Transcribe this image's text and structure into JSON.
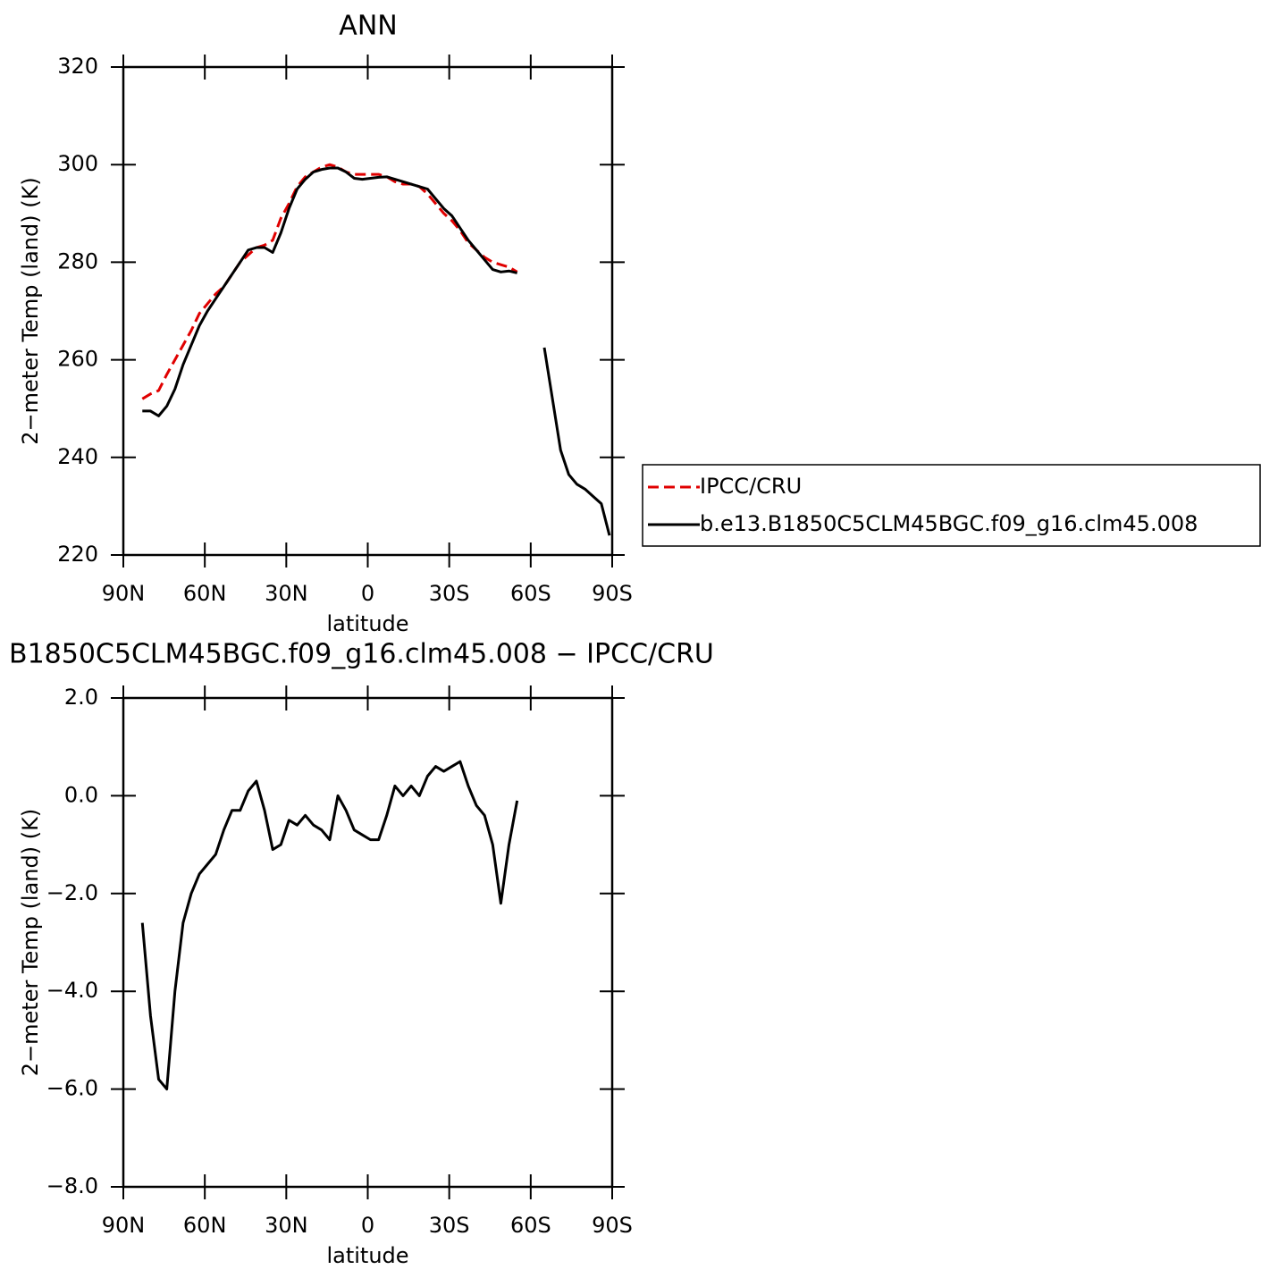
{
  "chart_data": [
    {
      "type": "line",
      "title": "ANN",
      "x_label": "latitude",
      "y_label": "2−meter Temp (land) (K)",
      "x": [
        83,
        80,
        77,
        74,
        71,
        68,
        65,
        62,
        59,
        56,
        53,
        50,
        47,
        44,
        41,
        38,
        35,
        32,
        29,
        26,
        23,
        20,
        17,
        14,
        11,
        8,
        5,
        2,
        -1,
        -4,
        -7,
        -10,
        -13,
        -16,
        -19,
        -22,
        -25,
        -28,
        -31,
        -34,
        -37,
        -40,
        -43,
        -46,
        -49,
        -52,
        -55,
        -60,
        -65,
        -68,
        -71,
        -74,
        -77,
        -80,
        -83,
        -86,
        -89
      ],
      "series": [
        {
          "name": "IPCC/CRU",
          "color": "#e00000",
          "dashed": true,
          "values": [
            252,
            253,
            253.7,
            257,
            260,
            263,
            266,
            269.5,
            271.5,
            273.5,
            275,
            277.5,
            280,
            281.5,
            283,
            283.5,
            284.5,
            289,
            292,
            295.5,
            297.5,
            298.5,
            299.5,
            300,
            299.5,
            298.5,
            298,
            298,
            298,
            298,
            297.5,
            296.5,
            296,
            296,
            295.5,
            294,
            292,
            290,
            288.5,
            286.5,
            284,
            282.5,
            281,
            280,
            279.5,
            279,
            278,
            null,
            null,
            null,
            null,
            null,
            null,
            null,
            null,
            null,
            null
          ]
        },
        {
          "name": "b.e13.B1850C5CLM45BGC.f09_g16.clm45.008",
          "color": "#000000",
          "dashed": false,
          "values": [
            249.5,
            249.5,
            248.5,
            250.5,
            254,
            259,
            263,
            267,
            270,
            272.5,
            275,
            277.5,
            280,
            282.5,
            283,
            283,
            282,
            286,
            291,
            295,
            297,
            298.5,
            299,
            299.3,
            299.3,
            298.5,
            297.2,
            297,
            297.2,
            297.4,
            297.5,
            297,
            296.5,
            296,
            295.5,
            295,
            293,
            291,
            289.5,
            287,
            284.5,
            282.5,
            280.5,
            278.5,
            278,
            278.2,
            277.8,
            null,
            262.5,
            252,
            241.5,
            236.5,
            234.5,
            233.5,
            232,
            230.5,
            224
          ]
        }
      ],
      "xlim": [
        90,
        -90
      ],
      "xticks": [
        {
          "value": 90,
          "label": "90N"
        },
        {
          "value": 60,
          "label": "60N"
        },
        {
          "value": 30,
          "label": "30N"
        },
        0,
        {
          "value": -30,
          "label": "30S"
        },
        {
          "value": -60,
          "label": "60S"
        },
        {
          "value": -90,
          "label": "90S"
        }
      ],
      "ylim": [
        220,
        320
      ],
      "yticks": [
        220,
        240,
        260,
        280,
        300,
        320
      ],
      "legend": "right"
    },
    {
      "type": "line",
      "title": "B1850C5CLM45BGC.f09_g16.clm45.008 − IPCC/CRU",
      "x_label": "latitude",
      "y_label": "2−meter Temp (land) (K)",
      "x": [
        83,
        80,
        77,
        74,
        71,
        68,
        65,
        62,
        59,
        56,
        53,
        50,
        47,
        44,
        41,
        38,
        35,
        32,
        29,
        26,
        23,
        20,
        17,
        14,
        11,
        8,
        5,
        2,
        -1,
        -4,
        -7,
        -10,
        -13,
        -16,
        -19,
        -22,
        -25,
        -28,
        -31,
        -34,
        -37,
        -40,
        -43,
        -46,
        -49,
        -52,
        -55
      ],
      "series": [
        {
          "color": "#000000",
          "dashed": false,
          "values": [
            -2.6,
            -4.5,
            -5.8,
            -6.0,
            -4.0,
            -2.6,
            -2.0,
            -1.6,
            -1.4,
            -1.2,
            -0.7,
            -0.3,
            -0.3,
            0.1,
            0.3,
            -0.3,
            -1.1,
            -1.0,
            -0.5,
            -0.6,
            -0.4,
            -0.6,
            -0.7,
            -0.9,
            0.0,
            -0.3,
            -0.7,
            -0.8,
            -0.9,
            -0.9,
            -0.4,
            0.2,
            0.0,
            0.2,
            0.0,
            0.4,
            0.6,
            0.5,
            0.6,
            0.7,
            0.2,
            -0.2,
            -0.4,
            -1.0,
            -2.2,
            -1.0,
            -0.1
          ]
        }
      ],
      "xlim": [
        90,
        -90
      ],
      "xticks": [
        {
          "value": 90,
          "label": "90N"
        },
        {
          "value": 60,
          "label": "60N"
        },
        {
          "value": 30,
          "label": "30N"
        },
        0,
        {
          "value": -30,
          "label": "30S"
        },
        {
          "value": -60,
          "label": "60S"
        },
        {
          "value": -90,
          "label": "90S"
        }
      ],
      "ylim": [
        -8,
        2
      ],
      "yticks": [
        {
          "value": -8,
          "label": "−8.0"
        },
        {
          "value": -6,
          "label": "−6.0"
        },
        {
          "value": -4,
          "label": "−4.0"
        },
        {
          "value": -2,
          "label": "−2.0"
        },
        {
          "value": 0,
          "label": "0.0"
        },
        {
          "value": 2,
          "label": "2.0"
        }
      ]
    }
  ]
}
